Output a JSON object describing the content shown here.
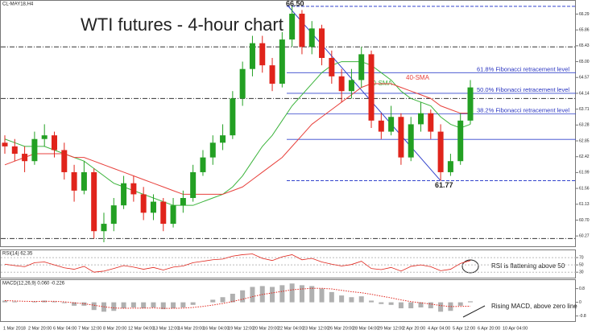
{
  "chart_data": {
    "type": "candlestick",
    "symbol": "CL-MAY18,H4",
    "title": "WTI futures - 4-hour chart",
    "up_color": "#23a023",
    "down_color": "#e0241b",
    "ylim": [
      59.99,
      66.65
    ],
    "yticks": [
      60.27,
      {
        "value": 60.7,
        "label": "60.70"
      },
      61.13,
      61.56,
      61.99,
      62.42,
      62.85,
      63.28,
      63.71,
      64.14,
      64.57,
      {
        "value": 65.0,
        "label": "65.00"
      },
      65.43,
      65.86,
      66.29
    ],
    "x_labels": [
      "1 Mar 2018",
      "2 Mar 20:00",
      "6 Mar 04:00",
      "7 Mar 12:00",
      "8 Mar 20:00",
      "12 Mar 04:00",
      "13 Mar 12:00",
      "14 Mar 20:00",
      "16 Mar 04:00",
      "19 Mar 12:00",
      "20 Mar 20:00",
      "22 Mar 04:00",
      "23 Mar 12:00",
      "26 Mar 20:00",
      "28 Mar 04:00",
      "29 Mar 12:00",
      "2 Apr 20:00",
      "4 Apr 04:00",
      "5 Apr 12:00",
      "6 Apr 20:00",
      "10 Apr 04:00"
    ],
    "candles": [
      [
        62.8,
        63.0,
        62.5,
        62.7
      ],
      [
        62.7,
        62.9,
        62.3,
        62.5
      ],
      [
        62.5,
        62.7,
        62.0,
        62.3
      ],
      [
        62.3,
        63.1,
        62.2,
        62.9
      ],
      [
        62.9,
        63.3,
        62.7,
        63.0
      ],
      [
        63.0,
        63.1,
        62.4,
        62.6
      ],
      [
        62.6,
        62.8,
        61.8,
        62.0
      ],
      [
        62.0,
        62.2,
        61.2,
        61.5
      ],
      [
        61.5,
        62.3,
        61.4,
        62.0
      ],
      [
        62.0,
        62.1,
        60.2,
        60.4
      ],
      [
        60.4,
        60.9,
        60.1,
        60.6
      ],
      [
        60.6,
        61.3,
        60.4,
        61.1
      ],
      [
        61.1,
        61.9,
        61.0,
        61.7
      ],
      [
        61.7,
        61.9,
        61.2,
        61.4
      ],
      [
        61.4,
        61.6,
        60.7,
        60.9
      ],
      [
        60.9,
        61.4,
        60.7,
        61.2
      ],
      [
        61.2,
        61.3,
        60.4,
        60.6
      ],
      [
        60.6,
        61.3,
        60.5,
        61.1
      ],
      [
        61.1,
        61.5,
        60.9,
        61.3
      ],
      [
        61.3,
        62.2,
        61.2,
        62.0
      ],
      [
        62.0,
        62.6,
        61.9,
        62.4
      ],
      [
        62.4,
        63.0,
        62.2,
        62.8
      ],
      [
        62.8,
        63.3,
        62.6,
        63.0
      ],
      [
        63.0,
        64.2,
        62.9,
        64.0
      ],
      [
        64.0,
        65.0,
        63.8,
        64.8
      ],
      [
        64.8,
        65.7,
        64.6,
        65.5
      ],
      [
        65.5,
        65.7,
        64.7,
        64.9
      ],
      [
        64.9,
        65.1,
        64.2,
        64.4
      ],
      [
        64.4,
        65.8,
        64.3,
        65.6
      ],
      [
        65.6,
        66.5,
        65.4,
        66.3
      ],
      [
        66.3,
        66.4,
        65.2,
        65.4
      ],
      [
        65.4,
        66.1,
        65.2,
        65.9
      ],
      [
        65.9,
        66.0,
        64.9,
        65.1
      ],
      [
        65.1,
        65.3,
        64.4,
        64.6
      ],
      [
        64.6,
        64.8,
        63.9,
        64.2
      ],
      [
        64.2,
        64.8,
        64.0,
        64.5
      ],
      [
        64.5,
        65.4,
        64.3,
        65.2
      ],
      [
        65.2,
        65.3,
        63.2,
        63.4
      ],
      [
        63.4,
        63.6,
        62.9,
        63.1
      ],
      [
        63.1,
        63.8,
        63.0,
        63.5
      ],
      [
        63.5,
        63.6,
        62.2,
        62.4
      ],
      [
        62.4,
        63.5,
        62.3,
        63.3
      ],
      [
        63.3,
        63.9,
        63.1,
        63.6
      ],
      [
        63.6,
        63.7,
        62.9,
        63.1
      ],
      [
        63.1,
        63.3,
        61.77,
        62.0
      ],
      [
        62.0,
        62.5,
        61.9,
        62.3
      ],
      [
        62.3,
        63.6,
        62.2,
        63.4
      ],
      [
        63.4,
        64.5,
        63.3,
        64.3
      ]
    ],
    "sma20": {
      "name": "20-SMA",
      "color": "#3cb43c",
      "values": [
        62.9,
        62.8,
        62.7,
        62.7,
        62.7,
        62.6,
        62.5,
        62.4,
        62.3,
        62.1,
        61.9,
        61.7,
        61.6,
        61.5,
        61.4,
        61.3,
        61.2,
        61.1,
        61.1,
        61.1,
        61.2,
        61.3,
        61.4,
        61.6,
        61.9,
        62.3,
        62.7,
        63.0,
        63.4,
        63.8,
        64.1,
        64.4,
        64.7,
        64.9,
        65.0,
        65.0,
        65.0,
        64.9,
        64.7,
        64.5,
        64.2,
        64.0,
        63.9,
        63.8,
        63.5,
        63.3,
        63.2,
        63.3
      ]
    },
    "sma40": {
      "name": "40-SMA",
      "color": "#e8413c",
      "values": [
        62.2,
        62.3,
        62.4,
        62.5,
        62.5,
        62.5,
        62.5,
        62.4,
        62.4,
        62.3,
        62.2,
        62.1,
        62.0,
        61.9,
        61.8,
        61.7,
        61.6,
        61.5,
        61.4,
        61.4,
        61.4,
        61.4,
        61.4,
        61.5,
        61.6,
        61.8,
        62.0,
        62.2,
        62.4,
        62.7,
        63.0,
        63.3,
        63.5,
        63.7,
        63.9,
        64.1,
        64.3,
        64.4,
        64.4,
        64.4,
        64.3,
        64.2,
        64.1,
        64.0,
        63.8,
        63.7,
        63.6,
        63.6
      ]
    },
    "fib_levels": [
      {
        "value": 64.7,
        "label": "61.8% Fibonacci retracement level"
      },
      {
        "value": 64.14,
        "label": "50.0% Fibonacci retracement level"
      },
      {
        "value": 63.58,
        "label": "38.2% Fibonacci retracement level"
      },
      {
        "value": 62.89
      }
    ],
    "high_level": {
      "value": 66.5,
      "label": "66.50"
    },
    "low_level": {
      "value": 61.77,
      "label": "61.77"
    },
    "dashed_levels": [
      65.4,
      64.0,
      60.2
    ],
    "rsi": {
      "title": "RSI(14) 62.35",
      "annotation": "RSI is flattening above 50",
      "ylim": [
        15,
        90
      ],
      "yticks": [
        30,
        50,
        70
      ],
      "values": [
        52,
        48,
        45,
        56,
        58,
        50,
        42,
        38,
        46,
        30,
        33,
        40,
        48,
        44,
        38,
        43,
        36,
        44,
        47,
        56,
        60,
        64,
        66,
        74,
        78,
        80,
        68,
        62,
        72,
        78,
        64,
        68,
        58,
        52,
        47,
        51,
        60,
        40,
        37,
        43,
        33,
        46,
        50,
        45,
        34,
        38,
        54,
        62
      ]
    },
    "macd": {
      "title": "MACD(12,26,9) 0.060 -0.226",
      "annotation": "Rising MACD, above zero line",
      "ylim": [
        -1.1,
        1.3
      ],
      "yticks": [
        -0.8,
        0,
        0.8
      ],
      "histogram": [
        0.1,
        0.05,
        0.0,
        0.05,
        0.1,
        0.05,
        -0.05,
        -0.2,
        -0.2,
        -0.45,
        -0.55,
        -0.5,
        -0.35,
        -0.3,
        -0.35,
        -0.3,
        -0.4,
        -0.35,
        -0.3,
        -0.15,
        0.0,
        0.15,
        0.3,
        0.5,
        0.7,
        0.9,
        0.95,
        0.9,
        1.0,
        1.1,
        1.0,
        0.95,
        0.8,
        0.6,
        0.4,
        0.3,
        0.35,
        0.1,
        -0.1,
        -0.15,
        -0.35,
        -0.35,
        -0.3,
        -0.35,
        -0.55,
        -0.5,
        -0.2,
        0.06
      ],
      "signal": [
        0.1,
        0.08,
        0.06,
        0.05,
        0.06,
        0.06,
        0.03,
        -0.03,
        -0.08,
        -0.17,
        -0.26,
        -0.33,
        -0.35,
        -0.34,
        -0.34,
        -0.33,
        -0.35,
        -0.35,
        -0.34,
        -0.3,
        -0.24,
        -0.16,
        -0.07,
        0.05,
        0.18,
        0.33,
        0.46,
        0.55,
        0.64,
        0.73,
        0.78,
        0.82,
        0.82,
        0.78,
        0.7,
        0.62,
        0.56,
        0.47,
        0.36,
        0.26,
        0.14,
        0.04,
        -0.03,
        -0.1,
        -0.19,
        -0.25,
        -0.24,
        -0.226
      ]
    }
  }
}
